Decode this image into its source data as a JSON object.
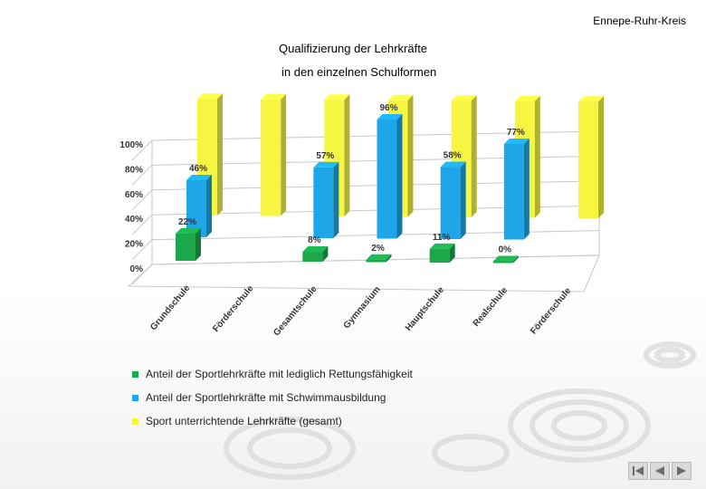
{
  "header": {
    "org": "Ennepe-Ruhr-Kreis"
  },
  "slide": {
    "title": "Qualifizierung der Lehrkräfte",
    "subtitle": "in den einzelnen Schulformen"
  },
  "chart_data": {
    "type": "bar",
    "categories": [
      "Grundschule",
      "Förderschule",
      "Gesamtschule",
      "Gymnasium",
      "Hauptschule",
      "Realschule",
      "Förderschule"
    ],
    "y_ticks": [
      "0%",
      "20%",
      "40%",
      "60%",
      "80%",
      "100%"
    ],
    "ylim": [
      0,
      100
    ],
    "grid": true,
    "legend_placement": "bottom",
    "series": [
      {
        "name": "Anteil der Sportlehrkräfte mit lediglich Rettungsfähigkeit",
        "color": "#1aa84b",
        "values": [
          22,
          null,
          8,
          2,
          11,
          0,
          null
        ],
        "labels": [
          "22%",
          "",
          "8%",
          "2%",
          "11%",
          "0%",
          ""
        ]
      },
      {
        "name": "Anteil der Sportlehrkräfte mit Schwimmausbildung",
        "color": "#1ea6e8",
        "values": [
          46,
          null,
          57,
          96,
          58,
          77,
          null
        ],
        "labels": [
          "46%",
          "",
          "57%",
          "96%",
          "58%",
          "77%",
          ""
        ]
      },
      {
        "name": "Sport unterrichtende Lehrkräfte (gesamt)",
        "color": "#f5f542",
        "values": [
          100,
          100,
          100,
          100,
          100,
          100,
          100
        ],
        "labels": [
          "",
          "",
          "",
          "",
          "",
          "",
          ""
        ]
      }
    ]
  },
  "nav": {
    "first_icon": "skip-back-icon",
    "prev_icon": "prev-icon",
    "next_icon": "next-icon"
  }
}
